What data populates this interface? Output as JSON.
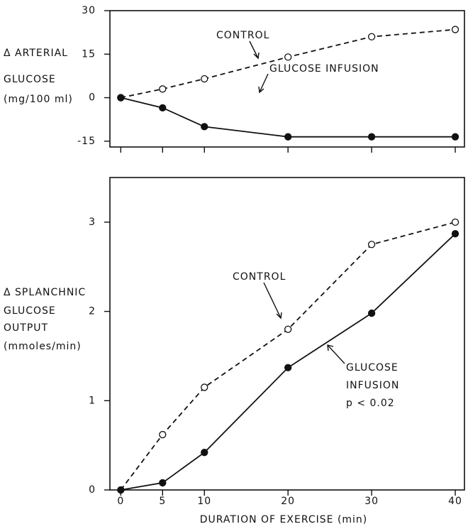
{
  "chart_data": [
    {
      "type": "line",
      "ylabel": [
        "Δ ARTERIAL",
        "GLUCOSE",
        "(mg/100 ml)"
      ],
      "x": [
        0,
        5,
        10,
        20,
        30,
        40
      ],
      "xlim": [
        -1.3,
        41.1
      ],
      "xticks": [
        0,
        5,
        10,
        20,
        30,
        40
      ],
      "ylim": [
        -17,
        30
      ],
      "yticks": [
        -15,
        0,
        15,
        30
      ],
      "series": [
        {
          "name": "CONTROL",
          "color": "#111111",
          "dashed": true,
          "marker_fill": "#ffffff",
          "values": [
            0,
            3,
            6.5,
            14,
            21,
            23.5
          ]
        },
        {
          "name": "GLUCOSE INFUSION",
          "color": "#111111",
          "dashed": false,
          "marker_fill": "#111111",
          "values": [
            0,
            -3.5,
            -10,
            -13.5,
            -13.5,
            -13.5
          ]
        }
      ]
    },
    {
      "type": "line",
      "ylabel": [
        "Δ SPLANCHNIC",
        "GLUCOSE",
        "OUTPUT",
        "(mmoles/min)"
      ],
      "xlabel": "DURATION OF EXERCISE (min)",
      "x": [
        0,
        5,
        10,
        20,
        30,
        40
      ],
      "xlim": [
        -1.3,
        41.1
      ],
      "xticks": [
        0,
        5,
        10,
        20,
        30,
        40
      ],
      "ylim": [
        0,
        3.5
      ],
      "yticks": [
        0,
        1,
        2,
        3
      ],
      "series": [
        {
          "name": "CONTROL",
          "color": "#111111",
          "dashed": true,
          "marker_fill": "#ffffff",
          "values": [
            0,
            0.62,
            1.15,
            1.8,
            2.75,
            3.0
          ]
        },
        {
          "annotation": [
            "GLUCOSE",
            "INFUSION",
            "p < 0.02"
          ],
          "color": "#111111",
          "dashed": false,
          "marker_fill": "#111111",
          "values": [
            0,
            0.08,
            0.42,
            1.37,
            1.98,
            2.87
          ]
        }
      ]
    }
  ]
}
